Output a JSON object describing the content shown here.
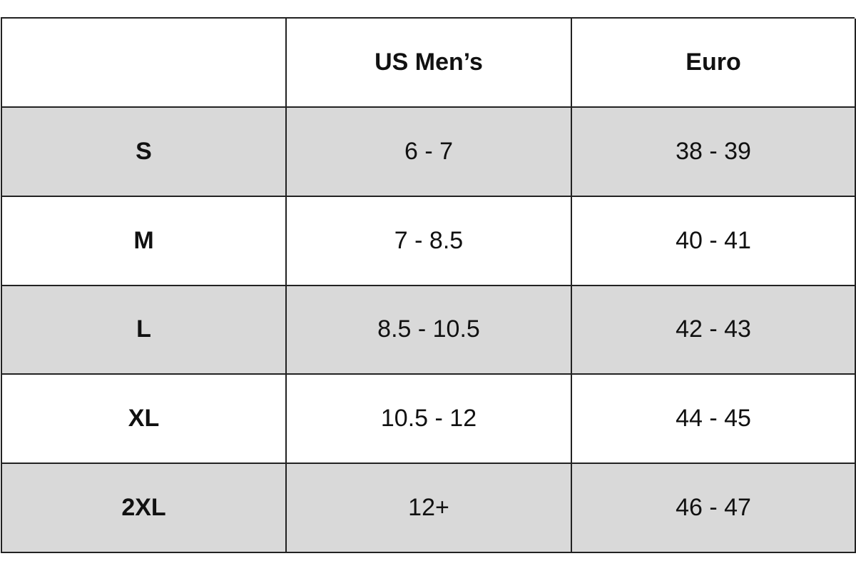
{
  "table": {
    "header": [
      "US Men’s",
      "Euro"
    ],
    "rows": [
      [
        "S",
        "6 - 7",
        "38 - 39"
      ],
      [
        "M",
        "7 - 8.5",
        "40 - 41"
      ],
      [
        "L",
        "8.5 - 10.5",
        "42 - 43"
      ],
      [
        "XL",
        "10.5 - 12",
        "44 - 45"
      ],
      [
        "2XL",
        "12+",
        "46 - 47"
      ]
    ]
  }
}
